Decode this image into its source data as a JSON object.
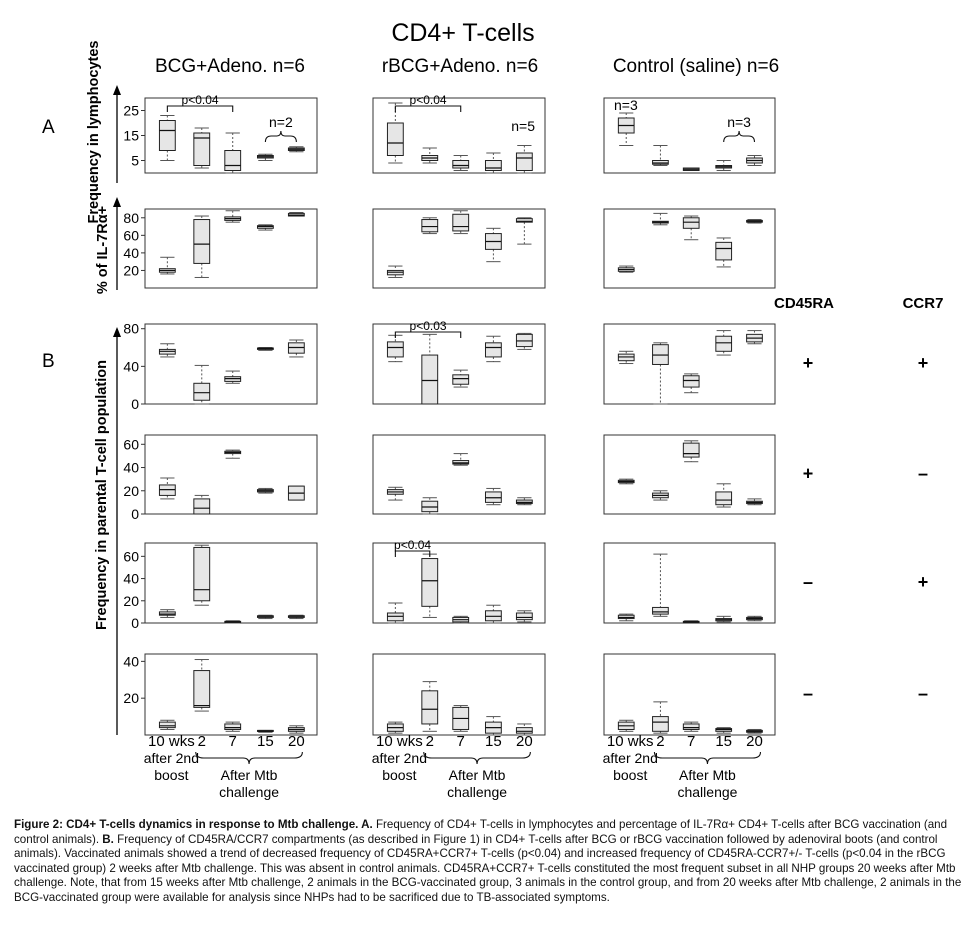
{
  "figure": {
    "title": "CD4+ T-cells",
    "groups": [
      "BCG+Adeno.  n=6",
      "rBCG+Adeno.  n=6",
      "Control (saline) n=6"
    ],
    "section_labels": [
      "A",
      "B"
    ],
    "marker_headers": [
      "CD45RA",
      "CCR7"
    ],
    "marker_rows": [
      [
        "+",
        "+"
      ],
      [
        "+",
        "–"
      ],
      [
        "–",
        "+"
      ],
      [
        "–",
        "–"
      ]
    ],
    "ylabels": {
      "freq_lymph": "Frequency in lymphocytes",
      "il7ra": "% of IL-7Rα+",
      "parental": "Frequency in parental T-cell population"
    },
    "xaxis": {
      "ticks": [
        "10 wks",
        "2",
        "7",
        "15",
        "20"
      ],
      "line2": "after 2nd",
      "line3": "boost",
      "challenge1": "After Mtb",
      "challenge2": "challenge"
    }
  },
  "chart_data": {
    "type": "box",
    "title": "CD4+ T-cells",
    "x": [
      "10 wks after 2nd boost",
      "2",
      "7",
      "15",
      "20"
    ],
    "series": [
      {
        "name": "BCG+Adeno.",
        "panel": "A1",
        "ylim": [
          0,
          30
        ],
        "yticks": [
          5,
          15,
          25
        ],
        "boxes": [
          [
            5,
            9,
            17,
            21,
            23
          ],
          [
            2,
            3,
            14,
            16,
            18
          ],
          [
            0,
            1,
            3,
            9,
            16
          ],
          [
            5,
            6,
            6.5,
            7,
            7.5
          ],
          [
            8.5,
            9,
            9.5,
            10,
            10.5
          ]
        ],
        "annotations": [
          {
            "text": "p<0.04",
            "from": 0,
            "to": 2
          },
          {
            "text": "n=2",
            "from": 3,
            "to": 4
          }
        ]
      },
      {
        "name": "rBCG+Adeno.",
        "panel": "A1",
        "ylim": [
          0,
          30
        ],
        "yticks": [
          5,
          15,
          25
        ],
        "boxes": [
          [
            4,
            7,
            12,
            20,
            28
          ],
          [
            4,
            5,
            6,
            7,
            10
          ],
          [
            1,
            2,
            3,
            5,
            7
          ],
          [
            0,
            1,
            2,
            5,
            8
          ],
          [
            0,
            1,
            6,
            8,
            11
          ]
        ],
        "annotations": [
          {
            "text": "p<0.04",
            "from": 0,
            "to": 2
          },
          {
            "text": "n=5"
          }
        ]
      },
      {
        "name": "Control (saline)",
        "panel": "A1",
        "ylim": [
          0,
          30
        ],
        "yticks": [
          5,
          15,
          25
        ],
        "boxes": [
          [
            11,
            16,
            19,
            22,
            24
          ],
          [
            3,
            3.5,
            4,
            5,
            11
          ],
          [
            1,
            1,
            1.5,
            2,
            2
          ],
          [
            1,
            2,
            2.5,
            3,
            5
          ],
          [
            3,
            4,
            5,
            6,
            7
          ]
        ],
        "annotations": [
          {
            "text": "n=3"
          },
          {
            "text": "n=3",
            "from": 3,
            "to": 4
          }
        ]
      },
      {
        "name": "BCG+Adeno.",
        "panel": "A2",
        "ylim": [
          0,
          90
        ],
        "yticks": [
          20,
          40,
          60,
          80
        ],
        "boxes": [
          [
            16,
            18,
            20,
            22,
            35
          ],
          [
            12,
            28,
            50,
            78,
            82
          ],
          [
            75,
            77,
            79,
            81,
            88
          ],
          [
            66,
            68,
            70,
            71,
            72
          ],
          [
            82,
            82,
            83,
            85,
            86
          ]
        ]
      },
      {
        "name": "rBCG+Adeno.",
        "panel": "A2",
        "ylim": [
          0,
          90
        ],
        "yticks": [
          20,
          40,
          60,
          80
        ],
        "boxes": [
          [
            12,
            15,
            18,
            20,
            25
          ],
          [
            62,
            64,
            70,
            78,
            80
          ],
          [
            62,
            65,
            70,
            84,
            88
          ],
          [
            30,
            44,
            53,
            62,
            68
          ],
          [
            50,
            75,
            76,
            79,
            80
          ]
        ]
      },
      {
        "name": "Control (saline)",
        "panel": "A2",
        "ylim": [
          0,
          90
        ],
        "yticks": [
          20,
          40,
          60,
          80
        ],
        "boxes": [
          [
            18,
            19,
            21,
            23,
            25
          ],
          [
            72,
            74,
            75,
            76,
            85
          ],
          [
            55,
            68,
            75,
            80,
            82
          ],
          [
            24,
            32,
            45,
            52,
            57
          ],
          [
            74,
            75,
            76,
            77,
            78
          ]
        ]
      },
      {
        "name": "BCG+Adeno.",
        "panel": "B1",
        "ylim": [
          0,
          85
        ],
        "yticks": [
          0,
          40,
          80
        ],
        "boxes": [
          [
            50,
            53,
            56,
            58,
            64
          ],
          [
            0,
            4,
            12,
            22,
            41
          ],
          [
            22,
            24,
            27,
            29,
            35
          ],
          [
            57,
            58,
            59,
            59.5,
            60
          ],
          [
            50,
            54,
            60,
            65,
            68
          ]
        ]
      },
      {
        "name": "rBCG+Adeno.",
        "panel": "B1",
        "ylim": [
          0,
          85
        ],
        "yticks": [
          0,
          40,
          80
        ],
        "boxes": [
          [
            45,
            50,
            60,
            66,
            73
          ],
          [
            0,
            0,
            25,
            52,
            74
          ],
          [
            18,
            21,
            27,
            31,
            36
          ],
          [
            45,
            50,
            60,
            65,
            72
          ],
          [
            58,
            61,
            67,
            74,
            75
          ]
        ],
        "annotations": [
          {
            "text": "p<0.03",
            "from": 0,
            "to": 2
          }
        ]
      },
      {
        "name": "Control (saline)",
        "panel": "B1",
        "ylim": [
          0,
          85
        ],
        "yticks": [
          0,
          40,
          80
        ],
        "boxes": [
          [
            43,
            46,
            50,
            53,
            56
          ],
          [
            0,
            42,
            52,
            63,
            65
          ],
          [
            12,
            18,
            25,
            30,
            32
          ],
          [
            52,
            56,
            65,
            72,
            78
          ],
          [
            64,
            66,
            70,
            74,
            78
          ]
        ]
      },
      {
        "name": "BCG+Adeno.",
        "panel": "B2",
        "ylim": [
          0,
          68
        ],
        "yticks": [
          0,
          20,
          40,
          60
        ],
        "boxes": [
          [
            13,
            16,
            21,
            25,
            31
          ],
          [
            0,
            0,
            5,
            13,
            16
          ],
          [
            48,
            52,
            53,
            54,
            55
          ],
          [
            18,
            19,
            20,
            21,
            22
          ],
          [
            12,
            12,
            18,
            24,
            24
          ]
        ]
      },
      {
        "name": "rBCG+Adeno.",
        "panel": "B2",
        "ylim": [
          0,
          68
        ],
        "yticks": [
          0,
          20,
          40,
          60
        ],
        "boxes": [
          [
            12,
            17,
            19,
            21,
            23
          ],
          [
            0,
            2,
            6,
            11,
            14
          ],
          [
            42,
            43,
            44,
            46,
            52
          ],
          [
            8,
            10,
            14,
            19,
            22
          ],
          [
            8,
            9,
            10,
            12,
            14
          ]
        ]
      },
      {
        "name": "Control (saline)",
        "panel": "B2",
        "ylim": [
          0,
          68
        ],
        "yticks": [
          0,
          20,
          40,
          60
        ],
        "boxes": [
          [
            26,
            27,
            28,
            29,
            30
          ],
          [
            12,
            14,
            16,
            18,
            20
          ],
          [
            45,
            49,
            52,
            61,
            63
          ],
          [
            6,
            8,
            12,
            19,
            26
          ],
          [
            8,
            9,
            10,
            11,
            13
          ]
        ]
      },
      {
        "name": "BCG+Adeno.",
        "panel": "B3",
        "ylim": [
          0,
          72
        ],
        "yticks": [
          0,
          20,
          40,
          60
        ],
        "boxes": [
          [
            5,
            7,
            8,
            10,
            12
          ],
          [
            16,
            20,
            30,
            68,
            70
          ],
          [
            0,
            0.5,
            1,
            1.5,
            2
          ],
          [
            4,
            5,
            6,
            6.5,
            7
          ],
          [
            4,
            5,
            6,
            6.5,
            7
          ]
        ]
      },
      {
        "name": "rBCG+Adeno.",
        "panel": "B3",
        "ylim": [
          0,
          72
        ],
        "yticks": [
          0,
          20,
          40,
          60
        ],
        "boxes": [
          [
            0,
            2,
            6,
            9,
            18
          ],
          [
            5,
            15,
            38,
            58,
            62
          ],
          [
            0,
            1,
            3,
            5,
            6
          ],
          [
            0,
            2,
            6,
            11,
            16
          ],
          [
            1,
            3,
            5,
            9,
            11
          ]
        ],
        "annotations": [
          {
            "text": "p<0.04",
            "from": 0,
            "to": 1
          }
        ]
      },
      {
        "name": "Control (saline)",
        "panel": "B3",
        "ylim": [
          0,
          72
        ],
        "yticks": [
          0,
          20,
          40,
          60
        ],
        "boxes": [
          [
            2,
            4,
            5,
            7,
            8
          ],
          [
            6,
            8,
            10,
            14,
            62
          ],
          [
            0,
            0,
            1,
            1.5,
            2
          ],
          [
            1,
            2,
            3,
            4,
            6
          ],
          [
            2,
            3,
            4,
            5,
            6
          ]
        ]
      },
      {
        "name": "BCG+Adeno.",
        "panel": "B4",
        "ylim": [
          0,
          44
        ],
        "yticks": [
          20,
          40
        ],
        "boxes": [
          [
            3,
            4,
            5,
            7,
            8
          ],
          [
            13,
            15,
            16,
            35,
            41
          ],
          [
            2,
            3,
            4,
            6,
            7
          ],
          [
            1.5,
            2,
            2,
            2.5,
            2.5
          ],
          [
            1,
            2,
            3,
            4,
            5
          ]
        ]
      },
      {
        "name": "rBCG+Adeno.",
        "panel": "B4",
        "ylim": [
          0,
          44
        ],
        "yticks": [
          20,
          40
        ],
        "boxes": [
          [
            1,
            2,
            4,
            6,
            7
          ],
          [
            2,
            6,
            14,
            24,
            29
          ],
          [
            2,
            3,
            9,
            15,
            16
          ],
          [
            0,
            1,
            4,
            7,
            10
          ],
          [
            0,
            1,
            2,
            4,
            6
          ]
        ]
      },
      {
        "name": "Control (saline)",
        "panel": "B4",
        "ylim": [
          0,
          44
        ],
        "yticks": [
          20,
          40
        ],
        "boxes": [
          [
            2,
            3,
            5,
            7,
            8
          ],
          [
            1,
            2,
            7,
            10,
            18
          ],
          [
            2,
            3,
            4,
            6,
            7
          ],
          [
            1,
            2,
            3,
            3.5,
            4
          ],
          [
            1,
            1.5,
            2,
            2.5,
            3
          ]
        ]
      }
    ]
  },
  "caption": {
    "lead": "Figure 2: CD4+ T-cells dynamics in response to Mtb challenge. A.",
    "body": " Frequency of CD4+ T-cells in lymphocytes and percentage of IL-7Rα+ CD4+ T-cells after BCG vaccination (and control animals).",
    "lead_b": " B.",
    "body_b": " Frequency of CD45RA/CCR7 compartments (as described in Figure 1) in CD4+ T-cells after BCG or rBCG vaccination followed by adenoviral boots (and control animals). Vaccinated animals showed a trend of decreased frequency of CD45RA+CCR7+ T-cells (p<0.04) and increased frequency of CD45RA-CCR7+/- T-cells (p<0.04 in the rBCG vaccinated group) 2 weeks after Mtb challenge. This was absent in control animals. CD45RA+CCR7+ T-cells constituted the most frequent subset in all NHP groups 20 weeks after Mtb challenge. Note, that from 15 weeks after Mtb challenge, 2 animals in the BCG-vaccinated group, 3 animals in the control group, and from 20 weeks after Mtb challenge, 2 animals in the BCG-vaccinated group were available for analysis since NHPs had to be sacrificed due to TB-associated symptoms."
  }
}
